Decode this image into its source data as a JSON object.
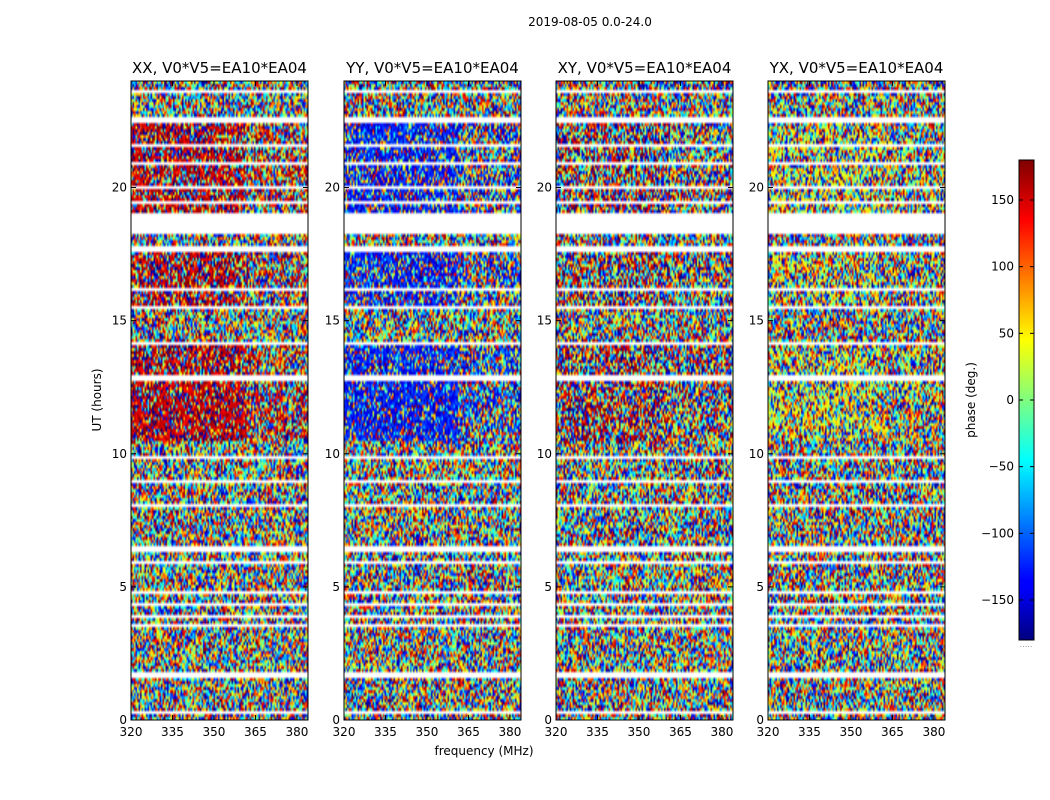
{
  "figure": {
    "suptitle": "2019-08-05 0.0-24.0",
    "xlabel": "frequency (MHz)",
    "ylabel": "UT (hours)",
    "colorbar_label": "phase (deg.)",
    "colorbar_extra": "....."
  },
  "chart_data": {
    "type": "heatmap",
    "colormap": "jet",
    "title": "2019-08-05 0.0-24.0",
    "xlabel": "frequency (MHz)",
    "ylabel": "UT (hours)",
    "xlim": [
      320,
      384
    ],
    "ylim": [
      0,
      24
    ],
    "xticks": [
      320,
      335,
      350,
      365,
      380
    ],
    "yticks": [
      0,
      5,
      10,
      15,
      20
    ],
    "clim": [
      -180,
      180
    ],
    "colorbar_ticks": [
      -150,
      -100,
      -50,
      0,
      50,
      100,
      150
    ],
    "colorbar_label": "phase (deg.)",
    "panels": [
      {
        "title": "XX, V0*V5=EA10*EA04",
        "polarization": "XX",
        "show_ylabel": true,
        "show_xlabel": false,
        "phase_bias": 160,
        "bias_weight": 0.75
      },
      {
        "title": "YY, V0*V5=EA10*EA04",
        "polarization": "YY",
        "show_ylabel": false,
        "show_xlabel": true,
        "phase_bias": -130,
        "bias_weight": 0.75
      },
      {
        "title": "XY, V0*V5=EA10*EA04",
        "polarization": "XY",
        "show_ylabel": false,
        "show_xlabel": false,
        "phase_bias": 170,
        "bias_weight": 0.3
      },
      {
        "title": "YX, V0*V5=EA10*EA04",
        "polarization": "YX",
        "show_ylabel": false,
        "show_xlabel": false,
        "phase_bias": 40,
        "bias_weight": 0.3
      }
    ],
    "flagged_time_ranges_hours": [
      [
        0.0,
        0.05
      ],
      [
        0.25,
        0.35
      ],
      [
        0.62,
        0.7
      ],
      [
        1.55,
        1.75
      ],
      [
        2.2,
        2.28
      ],
      [
        2.55,
        2.63
      ],
      [
        3.0,
        3.08
      ],
      [
        3.45,
        3.55
      ],
      [
        3.88,
        3.95
      ],
      [
        4.3,
        4.42
      ],
      [
        4.7,
        4.85
      ],
      [
        5.9,
        5.98
      ],
      [
        6.35,
        6.48
      ],
      [
        7.95,
        8.15
      ],
      [
        8.95,
        9.05
      ],
      [
        9.85,
        9.92
      ],
      [
        10.1,
        10.18
      ],
      [
        12.75,
        12.95
      ],
      [
        14.1,
        14.2
      ],
      [
        15.4,
        15.5
      ],
      [
        16.1,
        16.2
      ],
      [
        17.6,
        17.75
      ],
      [
        18.2,
        19.0
      ],
      [
        19.35,
        19.45
      ],
      [
        19.9,
        20.0
      ],
      [
        20.85,
        20.95
      ],
      [
        21.5,
        21.6
      ],
      [
        22.4,
        22.6
      ],
      [
        23.6,
        23.68
      ]
    ],
    "band_edge_mhz": 361
  }
}
